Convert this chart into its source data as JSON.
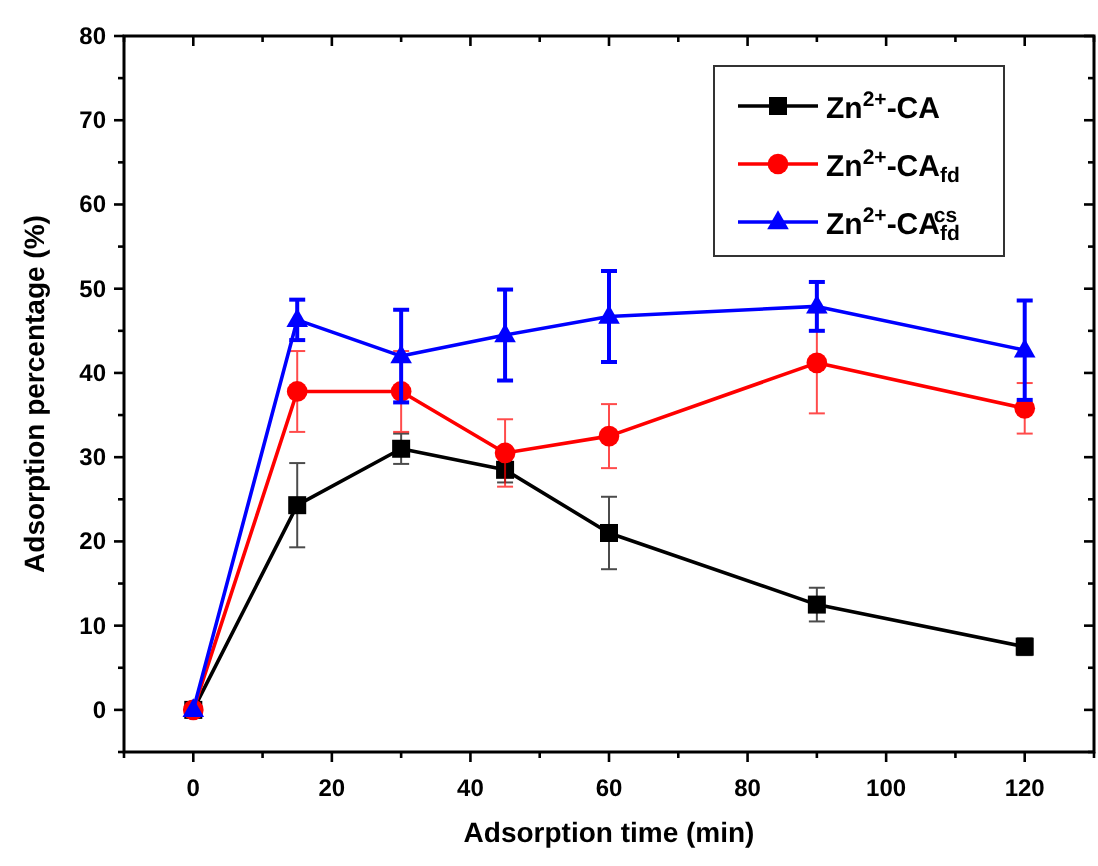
{
  "chart_data": {
    "type": "line",
    "xlabel": "Adsorption time (min)",
    "ylabel": "Adsorption percentage (%)",
    "x": [
      0,
      15,
      30,
      45,
      60,
      90,
      120
    ],
    "xlim": [
      -10,
      130
    ],
    "ylim": [
      -5,
      80
    ],
    "xticks": [
      {
        "value": -10,
        "label": null
      },
      0,
      {
        "value": 10,
        "label": null
      },
      20,
      {
        "value": 30,
        "label": null
      },
      40,
      {
        "value": 50,
        "label": null
      },
      60,
      {
        "value": 70,
        "label": null
      },
      80,
      {
        "value": 90,
        "label": null
      },
      100,
      {
        "value": 110,
        "label": null
      },
      120,
      {
        "value": 130,
        "label": null
      }
    ],
    "yticks": [
      {
        "value": -5,
        "label": null
      },
      0,
      {
        "value": 5,
        "label": null
      },
      10,
      {
        "value": 15,
        "label": null
      },
      20,
      {
        "value": 25,
        "label": null
      },
      30,
      {
        "value": 35,
        "label": null
      },
      40,
      {
        "value": 45,
        "label": null
      },
      50,
      {
        "value": 55,
        "label": null
      },
      60,
      {
        "value": 65,
        "label": null
      },
      70,
      {
        "value": 75,
        "label": null
      },
      80
    ],
    "legend": "top right",
    "grid": false,
    "line_style": "solid",
    "series": [
      {
        "name": "Zn$^{2+}$-CA",
        "color": "#000000",
        "marker": "square",
        "values": [
          0,
          24.3,
          31,
          28.5,
          21,
          12.5,
          7.5
        ],
        "errors": [
          null,
          5,
          1.8,
          1.5,
          4.3,
          2,
          1
        ]
      },
      {
        "name": "Zn$^{2+}$-CA$_{fd}$",
        "color": "#ff0000",
        "marker": "circle",
        "values": [
          0,
          37.8,
          37.8,
          30.5,
          32.5,
          41.2,
          35.8
        ],
        "errors": [
          null,
          4.8,
          4.8,
          4,
          3.8,
          6,
          3
        ]
      },
      {
        "name": "Zn$^{2+}$-CA$_{fd}$$^{cs}$",
        "color": "#0000ff",
        "marker": "triangle",
        "values": [
          0,
          46.3,
          42,
          44.5,
          46.7,
          47.9,
          42.7
        ],
        "errors": [
          null,
          2.4,
          5.5,
          5.4,
          5.4,
          2.9,
          5.9
        ]
      }
    ]
  }
}
